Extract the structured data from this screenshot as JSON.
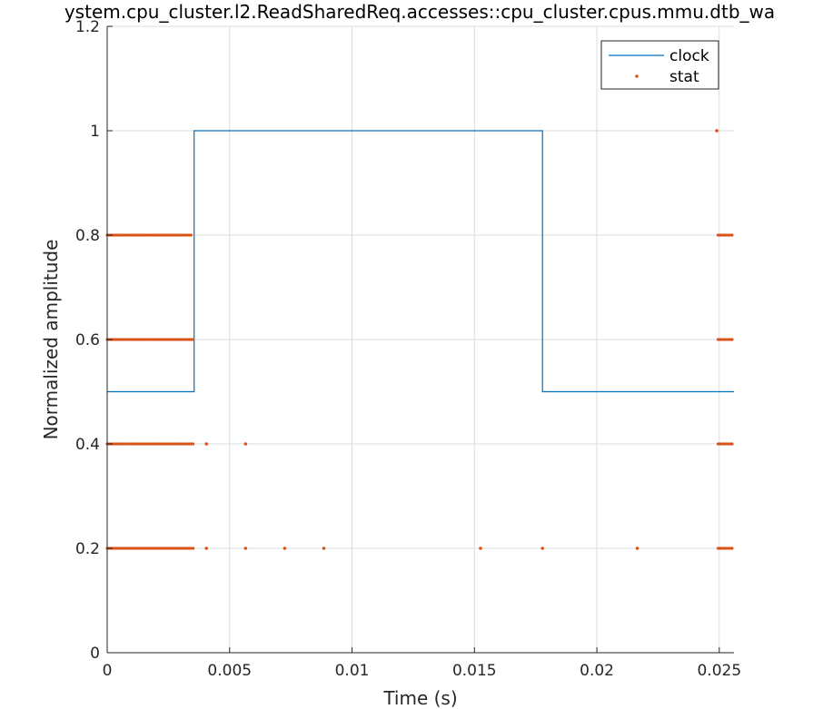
{
  "chart_data": {
    "type": "line",
    "title": "ystem.cpu_cluster.l2.ReadSharedReq.accesses::cpu_cluster.cpus.mmu.dtb_wa",
    "xlabel": "Time (s)",
    "ylabel": "Normalized amplitude",
    "xlim": [
      0,
      0.0256
    ],
    "ylim": [
      0,
      1.2
    ],
    "xticks": [
      0,
      0.005,
      0.01,
      0.015,
      0.02,
      0.025
    ],
    "xtick_labels": [
      "0",
      "0.005",
      "0.01",
      "0.015",
      "0.02",
      "0.025"
    ],
    "yticks": [
      0,
      0.2,
      0.4,
      0.6,
      0.8,
      1,
      1.2
    ],
    "ytick_labels": [
      "0",
      "0.2",
      "0.4",
      "0.6",
      "0.8",
      "1",
      "1.2"
    ],
    "grid": true,
    "legend_position": "top-right",
    "series": [
      {
        "name": "clock",
        "style": "step-line",
        "color": "#0072BD",
        "x": [
          0,
          0.00355,
          0.00355,
          0.01778,
          0.01778,
          0.0256
        ],
        "y": [
          0.5,
          0.5,
          1,
          1,
          0.5,
          0.5
        ]
      },
      {
        "name": "stat",
        "style": "markers",
        "color": "#D95319",
        "dense_runs": [
          {
            "y": 0.8,
            "x_start": 0.0,
            "x_end": 0.0035
          },
          {
            "y": 0.6,
            "x_start": 0.0,
            "x_end": 0.00355
          },
          {
            "y": 0.4,
            "x_start": 0.0,
            "x_end": 0.00355
          },
          {
            "y": 0.2,
            "x_start": 0.0,
            "x_end": 0.00355
          },
          {
            "y": 0.8,
            "x_start": 0.02495,
            "x_end": 0.02555
          },
          {
            "y": 0.6,
            "x_start": 0.02495,
            "x_end": 0.02555
          },
          {
            "y": 0.4,
            "x_start": 0.02495,
            "x_end": 0.02555
          },
          {
            "y": 0.2,
            "x_start": 0.02495,
            "x_end": 0.02555
          }
        ],
        "points": [
          {
            "x": 0.00405,
            "y": 0.4
          },
          {
            "x": 0.00565,
            "y": 0.4
          },
          {
            "x": 0.00405,
            "y": 0.2
          },
          {
            "x": 0.00565,
            "y": 0.2
          },
          {
            "x": 0.00725,
            "y": 0.2
          },
          {
            "x": 0.00885,
            "y": 0.2
          },
          {
            "x": 0.01525,
            "y": 0.2
          },
          {
            "x": 0.01778,
            "y": 0.2
          },
          {
            "x": 0.02165,
            "y": 0.2
          },
          {
            "x": 0.0249,
            "y": 1.0
          }
        ]
      }
    ]
  }
}
